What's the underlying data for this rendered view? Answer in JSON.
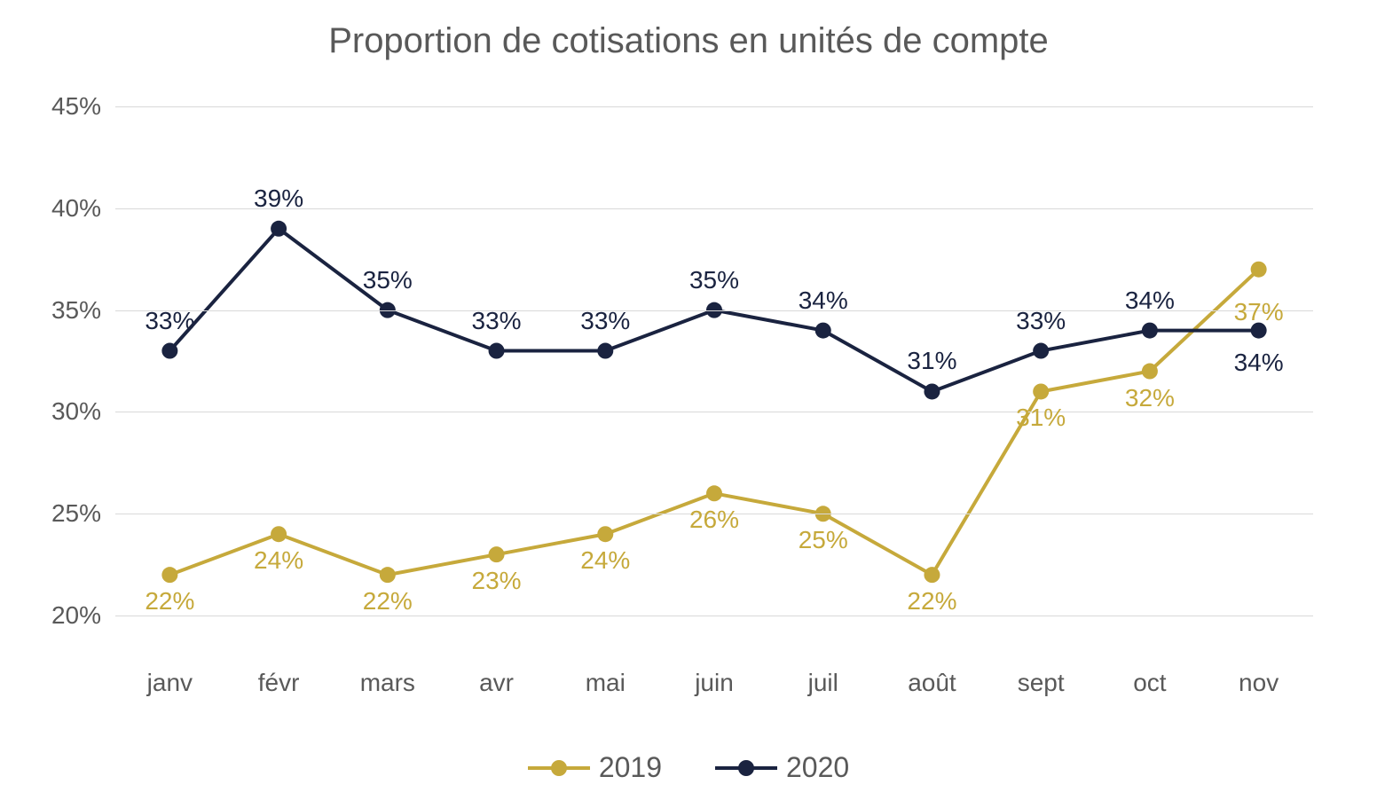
{
  "chart": {
    "type": "line",
    "title": "Proportion de cotisations en unités de compte",
    "title_color": "#595959",
    "title_fontsize": 40,
    "background_color": "#ffffff",
    "grid_color": "#d9d9d9",
    "axis_label_color": "#595959",
    "axis_label_fontsize": 28,
    "categories": [
      "janv",
      "févr",
      "mars",
      "avr",
      "mai",
      "juin",
      "juil",
      "août",
      "sept",
      "oct",
      "nov"
    ],
    "ylim": [
      18,
      45
    ],
    "yticks": [
      20,
      25,
      30,
      35,
      40,
      45
    ],
    "ytick_labels": [
      "20%",
      "25%",
      "30%",
      "35%",
      "40%",
      "45%"
    ],
    "line_width": 4,
    "marker_radius": 9,
    "data_label_fontsize": 28,
    "series": [
      {
        "name": "2019",
        "color": "#c6a93b",
        "values": [
          22,
          24,
          22,
          23,
          24,
          26,
          25,
          22,
          31,
          32,
          37
        ],
        "labels": [
          "22%",
          "24%",
          "22%",
          "23%",
          "24%",
          "26%",
          "25%",
          "22%",
          "31%",
          "32%",
          "37%"
        ],
        "label_position": "below",
        "label_overrides": {
          "10": {
            "position": "below",
            "dy": 32
          }
        }
      },
      {
        "name": "2020",
        "color": "#1a2340",
        "values": [
          33,
          39,
          35,
          33,
          33,
          35,
          34,
          31,
          33,
          34,
          34
        ],
        "labels": [
          "33%",
          "39%",
          "35%",
          "33%",
          "33%",
          "35%",
          "34%",
          "31%",
          "33%",
          "34%",
          "34%"
        ],
        "label_position": "above",
        "label_overrides": {
          "10": {
            "position": "below",
            "dy": 20
          }
        }
      }
    ],
    "legend": {
      "items": [
        {
          "label": "2019",
          "color": "#c6a93b"
        },
        {
          "label": "2020",
          "color": "#1a2340"
        }
      ]
    }
  }
}
